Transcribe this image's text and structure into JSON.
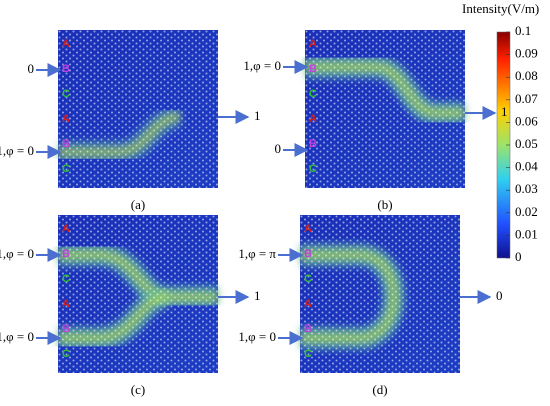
{
  "colorbar": {
    "title": "Intensity(V/m)",
    "ticks": [
      "0.1",
      "0.09",
      "0.08",
      "0.07",
      "0.06",
      "0.05",
      "0.04",
      "0.03",
      "0.02",
      "0.01",
      "0"
    ]
  },
  "panels": [
    {
      "caption": "(a)",
      "inputs": [
        "0",
        "1,φ = 0"
      ],
      "output": "1",
      "markers": [
        "A",
        "B",
        "C",
        "A",
        "B",
        "C"
      ]
    },
    {
      "caption": "(b)",
      "inputs": [
        "1,φ = 0",
        "0"
      ],
      "output": "1",
      "markers": [
        "A",
        "B",
        "C",
        "A",
        "B",
        "C"
      ]
    },
    {
      "caption": "(c)",
      "inputs": [
        "1,φ = 0",
        "1,φ = 0"
      ],
      "output": "1",
      "markers": [
        "A",
        "B",
        "C",
        "A",
        "B",
        "C"
      ]
    },
    {
      "caption": "(d)",
      "inputs": [
        "1,φ = π",
        "1,φ = 0"
      ],
      "output": "0",
      "markers": [
        "A",
        "B",
        "C",
        "A",
        "B",
        "C"
      ]
    }
  ]
}
